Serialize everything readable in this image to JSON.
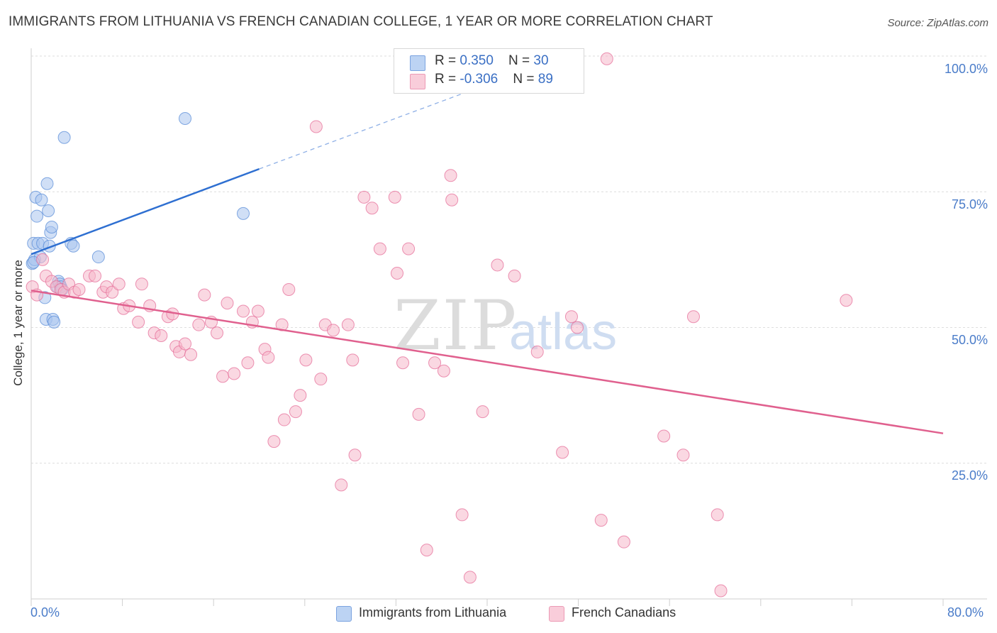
{
  "header": {
    "title": "IMMIGRANTS FROM LITHUANIA VS FRENCH CANADIAN COLLEGE, 1 YEAR OR MORE CORRELATION CHART",
    "source": "Source: ZipAtlas.com"
  },
  "watermark": {
    "zip": "ZIP",
    "atlas": "atlas"
  },
  "legend_top": {
    "rows": [
      {
        "r_label": "R = ",
        "r_value": "0.350",
        "n_label": "N = ",
        "n_value": "30",
        "color": "#a9c5ef"
      },
      {
        "r_label": "R = ",
        "r_value": "-0.306",
        "n_label": "N = ",
        "n_value": "89",
        "color": "#f5b8cb"
      }
    ]
  },
  "legend_bottom": {
    "items": [
      {
        "label": "Immigrants from Lithuania",
        "color": "#a9c5ef"
      },
      {
        "label": "French Canadians",
        "color": "#f5b8cb"
      }
    ]
  },
  "chart_data": {
    "type": "scatter",
    "ylabel": "College, 1 year or more",
    "xlim": [
      0,
      80
    ],
    "ylim": [
      0,
      100
    ],
    "x_tick_labels": [
      "0.0%",
      "80.0%"
    ],
    "y_ticks": [
      25,
      50,
      75,
      100
    ],
    "y_tick_labels": [
      "25.0%",
      "50.0%",
      "75.0%",
      "100.0%"
    ],
    "grid": true,
    "legend_position": "top-center",
    "series": [
      {
        "name": "Immigrants from Lithuania",
        "color": "#5b8ed8",
        "fill": "#a9c5ef",
        "trend": {
          "x0": 0,
          "y0": 63.5,
          "x1": 20,
          "y1": 79.2,
          "extend_to_x": 48,
          "extend_y": 101
        },
        "points": [
          [
            0.1,
            61.8
          ],
          [
            0.2,
            65.5
          ],
          [
            0.3,
            62.5
          ],
          [
            0.4,
            74.0
          ],
          [
            0.5,
            70.5
          ],
          [
            0.6,
            65.5
          ],
          [
            0.8,
            63.0
          ],
          [
            0.9,
            73.5
          ],
          [
            1.0,
            65.5
          ],
          [
            1.2,
            55.5
          ],
          [
            1.3,
            51.5
          ],
          [
            1.4,
            76.5
          ],
          [
            1.5,
            71.5
          ],
          [
            1.6,
            65.0
          ],
          [
            1.7,
            67.5
          ],
          [
            1.8,
            68.5
          ],
          [
            1.9,
            51.5
          ],
          [
            2.0,
            51.0
          ],
          [
            2.3,
            57.5
          ],
          [
            2.4,
            58.5
          ],
          [
            2.5,
            58.0
          ],
          [
            2.6,
            57.5
          ],
          [
            2.7,
            57.0
          ],
          [
            2.9,
            85.0
          ],
          [
            3.5,
            65.5
          ],
          [
            3.7,
            65.0
          ],
          [
            5.9,
            63.0
          ],
          [
            13.5,
            88.5
          ],
          [
            18.6,
            71.0
          ],
          [
            0.2,
            62.0
          ]
        ]
      },
      {
        "name": "French Canadians",
        "color": "#e56f9a",
        "fill": "#f5b8cb",
        "trend": {
          "x0": 0,
          "y0": 56.8,
          "x1": 80,
          "y1": 30.5
        },
        "points": [
          [
            0.1,
            57.5
          ],
          [
            0.5,
            56.0
          ],
          [
            1.0,
            62.5
          ],
          [
            1.3,
            59.5
          ],
          [
            1.8,
            58.5
          ],
          [
            2.2,
            57.5
          ],
          [
            2.6,
            57.0
          ],
          [
            2.9,
            56.5
          ],
          [
            3.3,
            58.0
          ],
          [
            3.8,
            56.5
          ],
          [
            4.2,
            57.0
          ],
          [
            5.1,
            59.5
          ],
          [
            5.6,
            59.5
          ],
          [
            6.3,
            56.5
          ],
          [
            6.6,
            57.5
          ],
          [
            7.1,
            56.5
          ],
          [
            7.7,
            58.0
          ],
          [
            8.1,
            53.5
          ],
          [
            8.6,
            54.0
          ],
          [
            9.4,
            51.0
          ],
          [
            9.7,
            58.0
          ],
          [
            10.4,
            54.0
          ],
          [
            10.8,
            49.0
          ],
          [
            11.4,
            48.5
          ],
          [
            12.0,
            52.0
          ],
          [
            12.4,
            52.5
          ],
          [
            12.7,
            46.5
          ],
          [
            13.0,
            45.5
          ],
          [
            13.5,
            47.0
          ],
          [
            14.0,
            45.0
          ],
          [
            14.7,
            50.5
          ],
          [
            15.2,
            56.0
          ],
          [
            15.8,
            51.0
          ],
          [
            16.3,
            49.0
          ],
          [
            16.8,
            41.0
          ],
          [
            17.2,
            54.5
          ],
          [
            17.8,
            41.5
          ],
          [
            18.6,
            53.0
          ],
          [
            19.0,
            43.5
          ],
          [
            19.4,
            51.0
          ],
          [
            19.9,
            53.0
          ],
          [
            20.5,
            46.0
          ],
          [
            20.8,
            44.5
          ],
          [
            21.3,
            29.0
          ],
          [
            22.0,
            50.5
          ],
          [
            22.2,
            33.0
          ],
          [
            22.6,
            57.0
          ],
          [
            23.2,
            34.5
          ],
          [
            23.6,
            37.5
          ],
          [
            24.1,
            44.0
          ],
          [
            25.0,
            87.0
          ],
          [
            25.4,
            40.5
          ],
          [
            25.8,
            50.5
          ],
          [
            26.5,
            49.5
          ],
          [
            27.2,
            21.0
          ],
          [
            27.8,
            50.5
          ],
          [
            28.2,
            44.0
          ],
          [
            28.4,
            26.5
          ],
          [
            29.2,
            74.0
          ],
          [
            29.9,
            72.0
          ],
          [
            30.6,
            64.5
          ],
          [
            31.9,
            74.0
          ],
          [
            32.1,
            60.0
          ],
          [
            32.6,
            43.5
          ],
          [
            33.1,
            64.5
          ],
          [
            34.0,
            34.0
          ],
          [
            34.7,
            9.0
          ],
          [
            35.4,
            43.5
          ],
          [
            36.2,
            42.0
          ],
          [
            36.8,
            78.0
          ],
          [
            36.9,
            73.5
          ],
          [
            37.8,
            15.5
          ],
          [
            38.5,
            4.0
          ],
          [
            39.6,
            34.5
          ],
          [
            40.9,
            61.5
          ],
          [
            42.4,
            59.5
          ],
          [
            44.4,
            45.5
          ],
          [
            46.6,
            27.0
          ],
          [
            47.4,
            52.0
          ],
          [
            47.9,
            50.0
          ],
          [
            50.0,
            14.5
          ],
          [
            50.5,
            99.5
          ],
          [
            52.0,
            10.5
          ],
          [
            55.5,
            30.0
          ],
          [
            57.2,
            26.5
          ],
          [
            58.1,
            52.0
          ],
          [
            60.2,
            15.5
          ],
          [
            60.5,
            1.5
          ],
          [
            71.5,
            55.0
          ]
        ]
      }
    ]
  }
}
